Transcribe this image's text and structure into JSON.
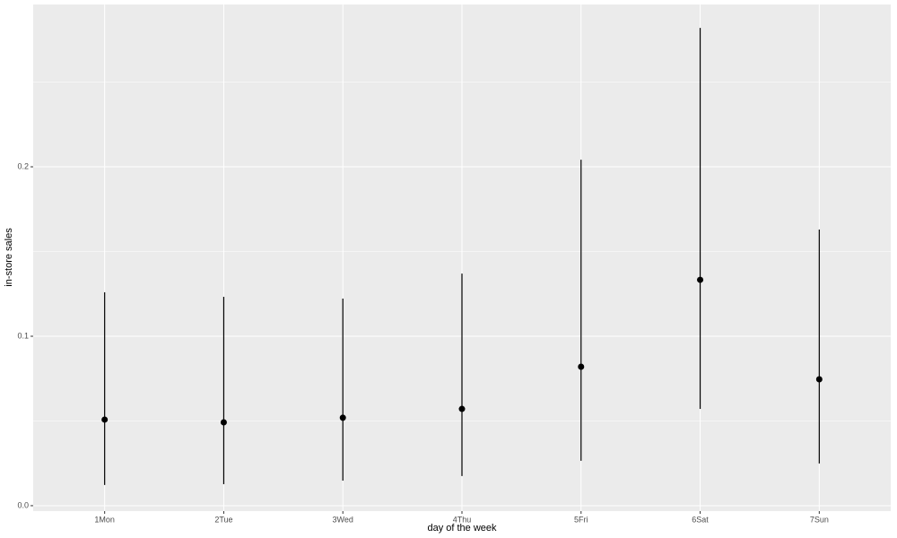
{
  "chart_data": {
    "type": "pointrange",
    "x_label": "day of the week",
    "y_label": "in-store sales",
    "categories": [
      "1Mon",
      "2Tue",
      "3Wed",
      "4Thu",
      "5Fri",
      "6Sat",
      "7Sun"
    ],
    "series": [
      {
        "color": "#000000",
        "values": [
          0.0508,
          0.0492,
          0.0519,
          0.0571,
          0.082,
          0.1333,
          0.0746
        ],
        "low": [
          0.0122,
          0.0127,
          0.0148,
          0.0175,
          0.0265,
          0.0571,
          0.0249
        ],
        "high": [
          0.1259,
          0.1233,
          0.1222,
          0.137,
          0.2042,
          0.282,
          0.163
        ]
      }
    ],
    "ylim": [
      -0.0032,
      0.2958
    ],
    "yticks": [
      {
        "value": 0,
        "label": "0.0"
      },
      0.1,
      0.2
    ],
    "minor_yticks": [
      0.05,
      0.15,
      0.25
    ],
    "grid": true
  }
}
